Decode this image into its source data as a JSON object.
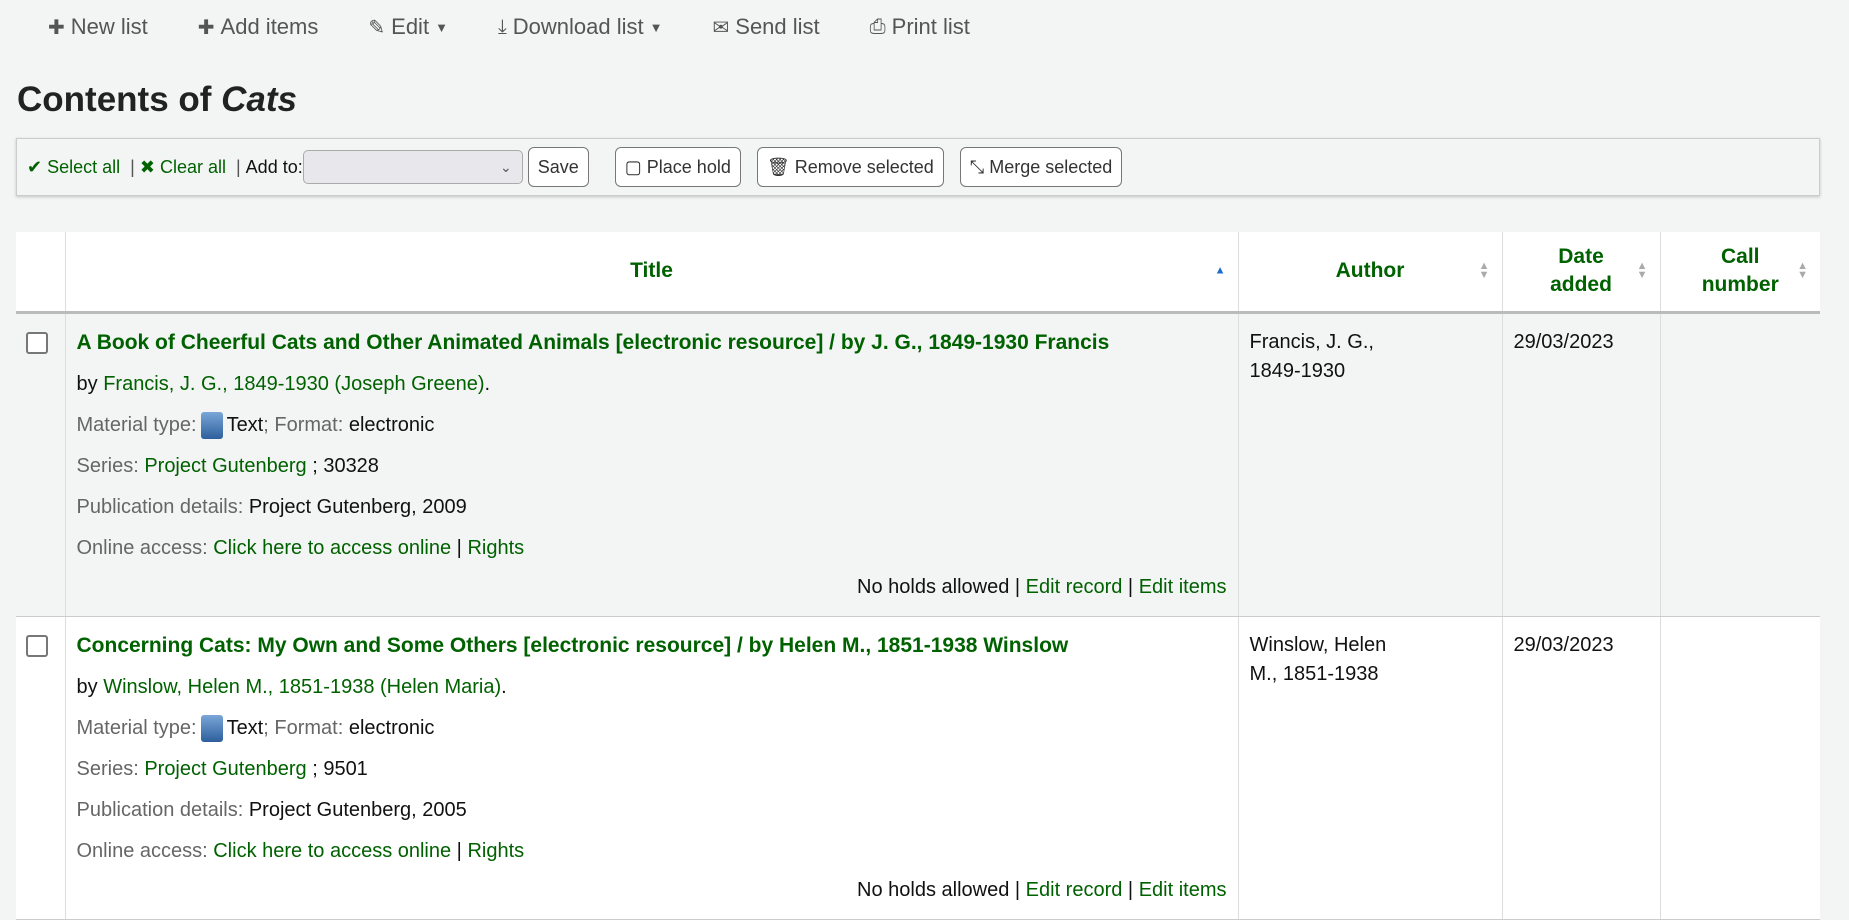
{
  "toolbar": {
    "new_list": "New list",
    "add_items": "Add items",
    "edit": "Edit",
    "download_list": "Download list",
    "send_list": "Send list",
    "print_list": "Print list"
  },
  "heading": {
    "prefix": "Contents of",
    "list_name": "Cats"
  },
  "selection": {
    "select_all": "Select all",
    "clear_all": "Clear all",
    "add_to": "Add to:",
    "add_to_value": "",
    "save": "Save",
    "place_hold": "Place hold",
    "remove_selected": "Remove selected",
    "merge_selected": "Merge selected"
  },
  "table": {
    "columns": [
      "Title",
      "Author",
      "Date added",
      "Call number"
    ],
    "sorted_column": "Title",
    "sort_direction": "ascending",
    "rows": [
      {
        "title": "A Book of Cheerful Cats and Other Animated Animals [electronic resource] / by J. G., 1849-1930 Francis",
        "by": "by",
        "author_link": "Francis, J. G., 1849-1930 (Joseph Greene)",
        "material_label": "Material type:",
        "material": "Text",
        "format_label": "; Format:",
        "format": "electronic",
        "series_label": "Series:",
        "series": "Project Gutenberg",
        "series_num": "; 30328",
        "pub_label": "Publication details:",
        "pub": "Project Gutenberg, 2009",
        "online_label": "Online access:",
        "online_link": "Click here to access online",
        "rights": "Rights",
        "holds": "No holds allowed",
        "edit_record": "Edit record",
        "edit_items": "Edit items",
        "author": "Francis, J. G., 1849-1930",
        "date_added": "29/03/2023",
        "call_number": ""
      },
      {
        "title": "Concerning Cats: My Own and Some Others [electronic resource] / by Helen M., 1851-1938 Winslow",
        "by": "by",
        "author_link": "Winslow, Helen M., 1851-1938 (Helen Maria)",
        "material_label": "Material type:",
        "material": "Text",
        "format_label": "; Format:",
        "format": "electronic",
        "series_label": "Series:",
        "series": "Project Gutenberg",
        "series_num": "; 9501",
        "pub_label": "Publication details:",
        "pub": "Project Gutenberg, 2005",
        "online_label": "Online access:",
        "online_link": "Click here to access online",
        "rights": "Rights",
        "holds": "No holds allowed",
        "edit_record": "Edit record",
        "edit_items": "Edit items",
        "author": "Winslow, Helen M., 1851-1938",
        "date_added": "29/03/2023",
        "call_number": ""
      }
    ]
  },
  "colors": {
    "link": "#006100",
    "background": "#f3f4f4",
    "sort_active": "#1a6fcc"
  }
}
